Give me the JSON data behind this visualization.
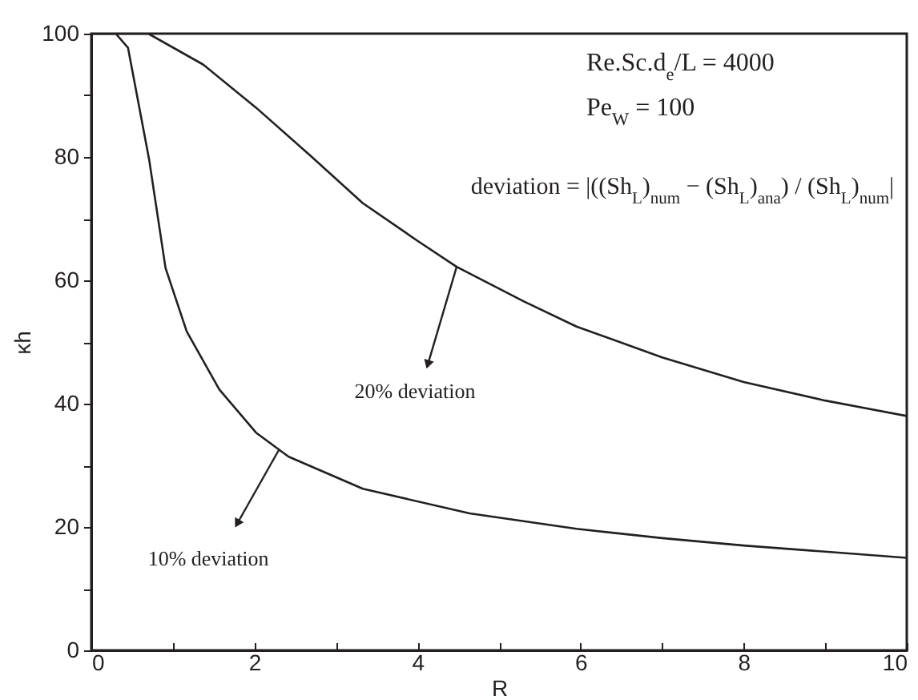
{
  "chart_data": {
    "type": "line",
    "xlabel": "R",
    "ylabel": "κh",
    "xlim": [
      0,
      10
    ],
    "ylim": [
      0,
      100
    ],
    "xticks": [
      0,
      {
        "value": 1,
        "label": null
      },
      2,
      {
        "value": 3,
        "label": null
      },
      4,
      {
        "value": 5,
        "label": null
      },
      6,
      {
        "value": 7,
        "label": null
      },
      8,
      {
        "value": 9,
        "label": null
      },
      10
    ],
    "yticks": [
      0,
      {
        "value": 10,
        "label": null
      },
      20,
      {
        "value": 30,
        "label": null
      },
      40,
      {
        "value": 50,
        "label": null
      },
      60,
      {
        "value": 70,
        "label": null
      },
      80,
      {
        "value": 90,
        "label": null
      },
      100
    ],
    "grid": false,
    "legend": false,
    "line_style": "solid",
    "marker": "none",
    "series": [
      {
        "color": "#231f20",
        "x": [
          0,
          0.3,
          0.45,
          0.71,
          0.91,
          1.17,
          1.57,
          2.02,
          2.42,
          3.33,
          4.64,
          5.95,
          7,
          8,
          9,
          10
        ],
        "values": [
          100,
          100,
          97.7,
          79.5,
          62,
          51.7,
          42.3,
          35.3,
          31.4,
          26.2,
          22.2,
          19.7,
          18.2,
          17,
          16,
          15
        ]
      },
      {
        "color": "#231f20",
        "x": [
          0,
          0.7,
          1.37,
          2.02,
          2.68,
          3.33,
          3.99,
          4.48,
          5.3,
          5.95,
          7,
          8,
          9,
          10
        ],
        "values": [
          100,
          100,
          95,
          88,
          80.3,
          72.5,
          66.5,
          62.2,
          56.6,
          52.5,
          47.5,
          43.5,
          40.5,
          38
        ]
      }
    ],
    "annotations": [
      "Re.Sc.d$_{e}$/L = 4000",
      "Pe$_{W}$ = 100",
      "deviation = |((Sh$_{L}$)$_{num}$ − (Sh$_{L}$)$_{ana}$) / (Sh$_{L}$)$_{num}$|",
      {
        "text": "20% deviation",
        "x": 4.48,
        "y": 62.2
      },
      {
        "text": "10% deviation",
        "x": 2.3,
        "y": 32.5
      }
    ]
  }
}
